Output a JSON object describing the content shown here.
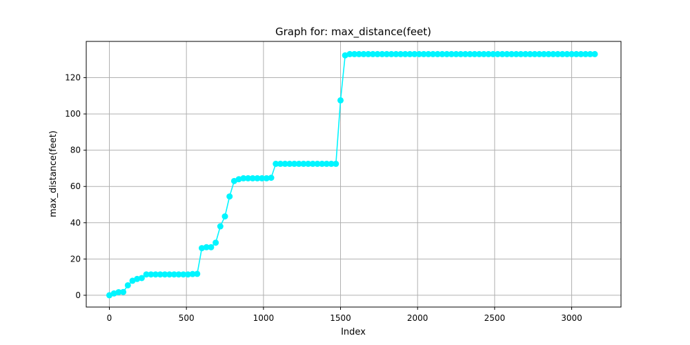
{
  "chart_data": {
    "type": "line",
    "title": "Graph for: max_distance(feet)",
    "xlabel": "Index",
    "ylabel": "max_distance(feet)",
    "xlim": [
      -150,
      3320
    ],
    "ylim": [
      -6.5,
      140
    ],
    "xticks": [
      0,
      500,
      1000,
      1500,
      2000,
      2500,
      3000
    ],
    "yticks": [
      0,
      20,
      40,
      60,
      80,
      100,
      120
    ],
    "grid": true,
    "color": "#00f5ff",
    "series": [
      {
        "x": [
          0,
          30,
          60,
          90,
          120,
          150,
          180,
          210,
          240,
          270,
          300,
          330,
          360,
          390,
          420,
          450,
          480,
          510,
          540,
          570,
          600,
          630,
          660,
          690,
          720,
          750,
          780,
          810,
          840,
          870,
          900,
          930,
          960,
          990,
          1020,
          1050,
          1080,
          1110,
          1140,
          1170,
          1200,
          1230,
          1260,
          1290,
          1320,
          1350,
          1380,
          1410,
          1440,
          1470,
          1500,
          1530,
          1560,
          1590,
          1620,
          1650,
          1680,
          1710,
          1740,
          1770,
          1800,
          1830,
          1860,
          1890,
          1920,
          1950,
          1980,
          2010,
          2040,
          2070,
          2100,
          2130,
          2160,
          2190,
          2220,
          2250,
          2280,
          2310,
          2340,
          2370,
          2400,
          2430,
          2460,
          2490,
          2520,
          2550,
          2580,
          2610,
          2640,
          2670,
          2700,
          2730,
          2760,
          2790,
          2820,
          2850,
          2880,
          2910,
          2940,
          2970,
          3000,
          3030,
          3060,
          3090,
          3120,
          3150
        ],
        "y": [
          0,
          1.0,
          1.7,
          1.8,
          5.5,
          8.0,
          9.0,
          9.5,
          11.5,
          11.5,
          11.5,
          11.5,
          11.5,
          11.5,
          11.5,
          11.5,
          11.5,
          11.5,
          11.7,
          11.8,
          26.0,
          26.5,
          26.5,
          29.0,
          38.0,
          43.5,
          54.5,
          63.0,
          64.0,
          64.5,
          64.5,
          64.5,
          64.5,
          64.5,
          64.5,
          64.8,
          72.5,
          72.5,
          72.5,
          72.5,
          72.5,
          72.5,
          72.5,
          72.5,
          72.5,
          72.5,
          72.5,
          72.5,
          72.5,
          72.5,
          107.5,
          132.3,
          133.0,
          133.0,
          133.0,
          133.0,
          133.0,
          133.0,
          133.0,
          133.0,
          133.0,
          133.0,
          133.0,
          133.0,
          133.0,
          133.0,
          133.0,
          133.0,
          133.0,
          133.0,
          133.0,
          133.0,
          133.0,
          133.0,
          133.0,
          133.0,
          133.0,
          133.0,
          133.0,
          133.0,
          133.0,
          133.0,
          133.0,
          133.0,
          133.0,
          133.0,
          133.0,
          133.0,
          133.0,
          133.0,
          133.0,
          133.0,
          133.0,
          133.0,
          133.0,
          133.0,
          133.0,
          133.0,
          133.0,
          133.0,
          133.0,
          133.0,
          133.0,
          133.0,
          133.0,
          133.0
        ]
      }
    ]
  }
}
